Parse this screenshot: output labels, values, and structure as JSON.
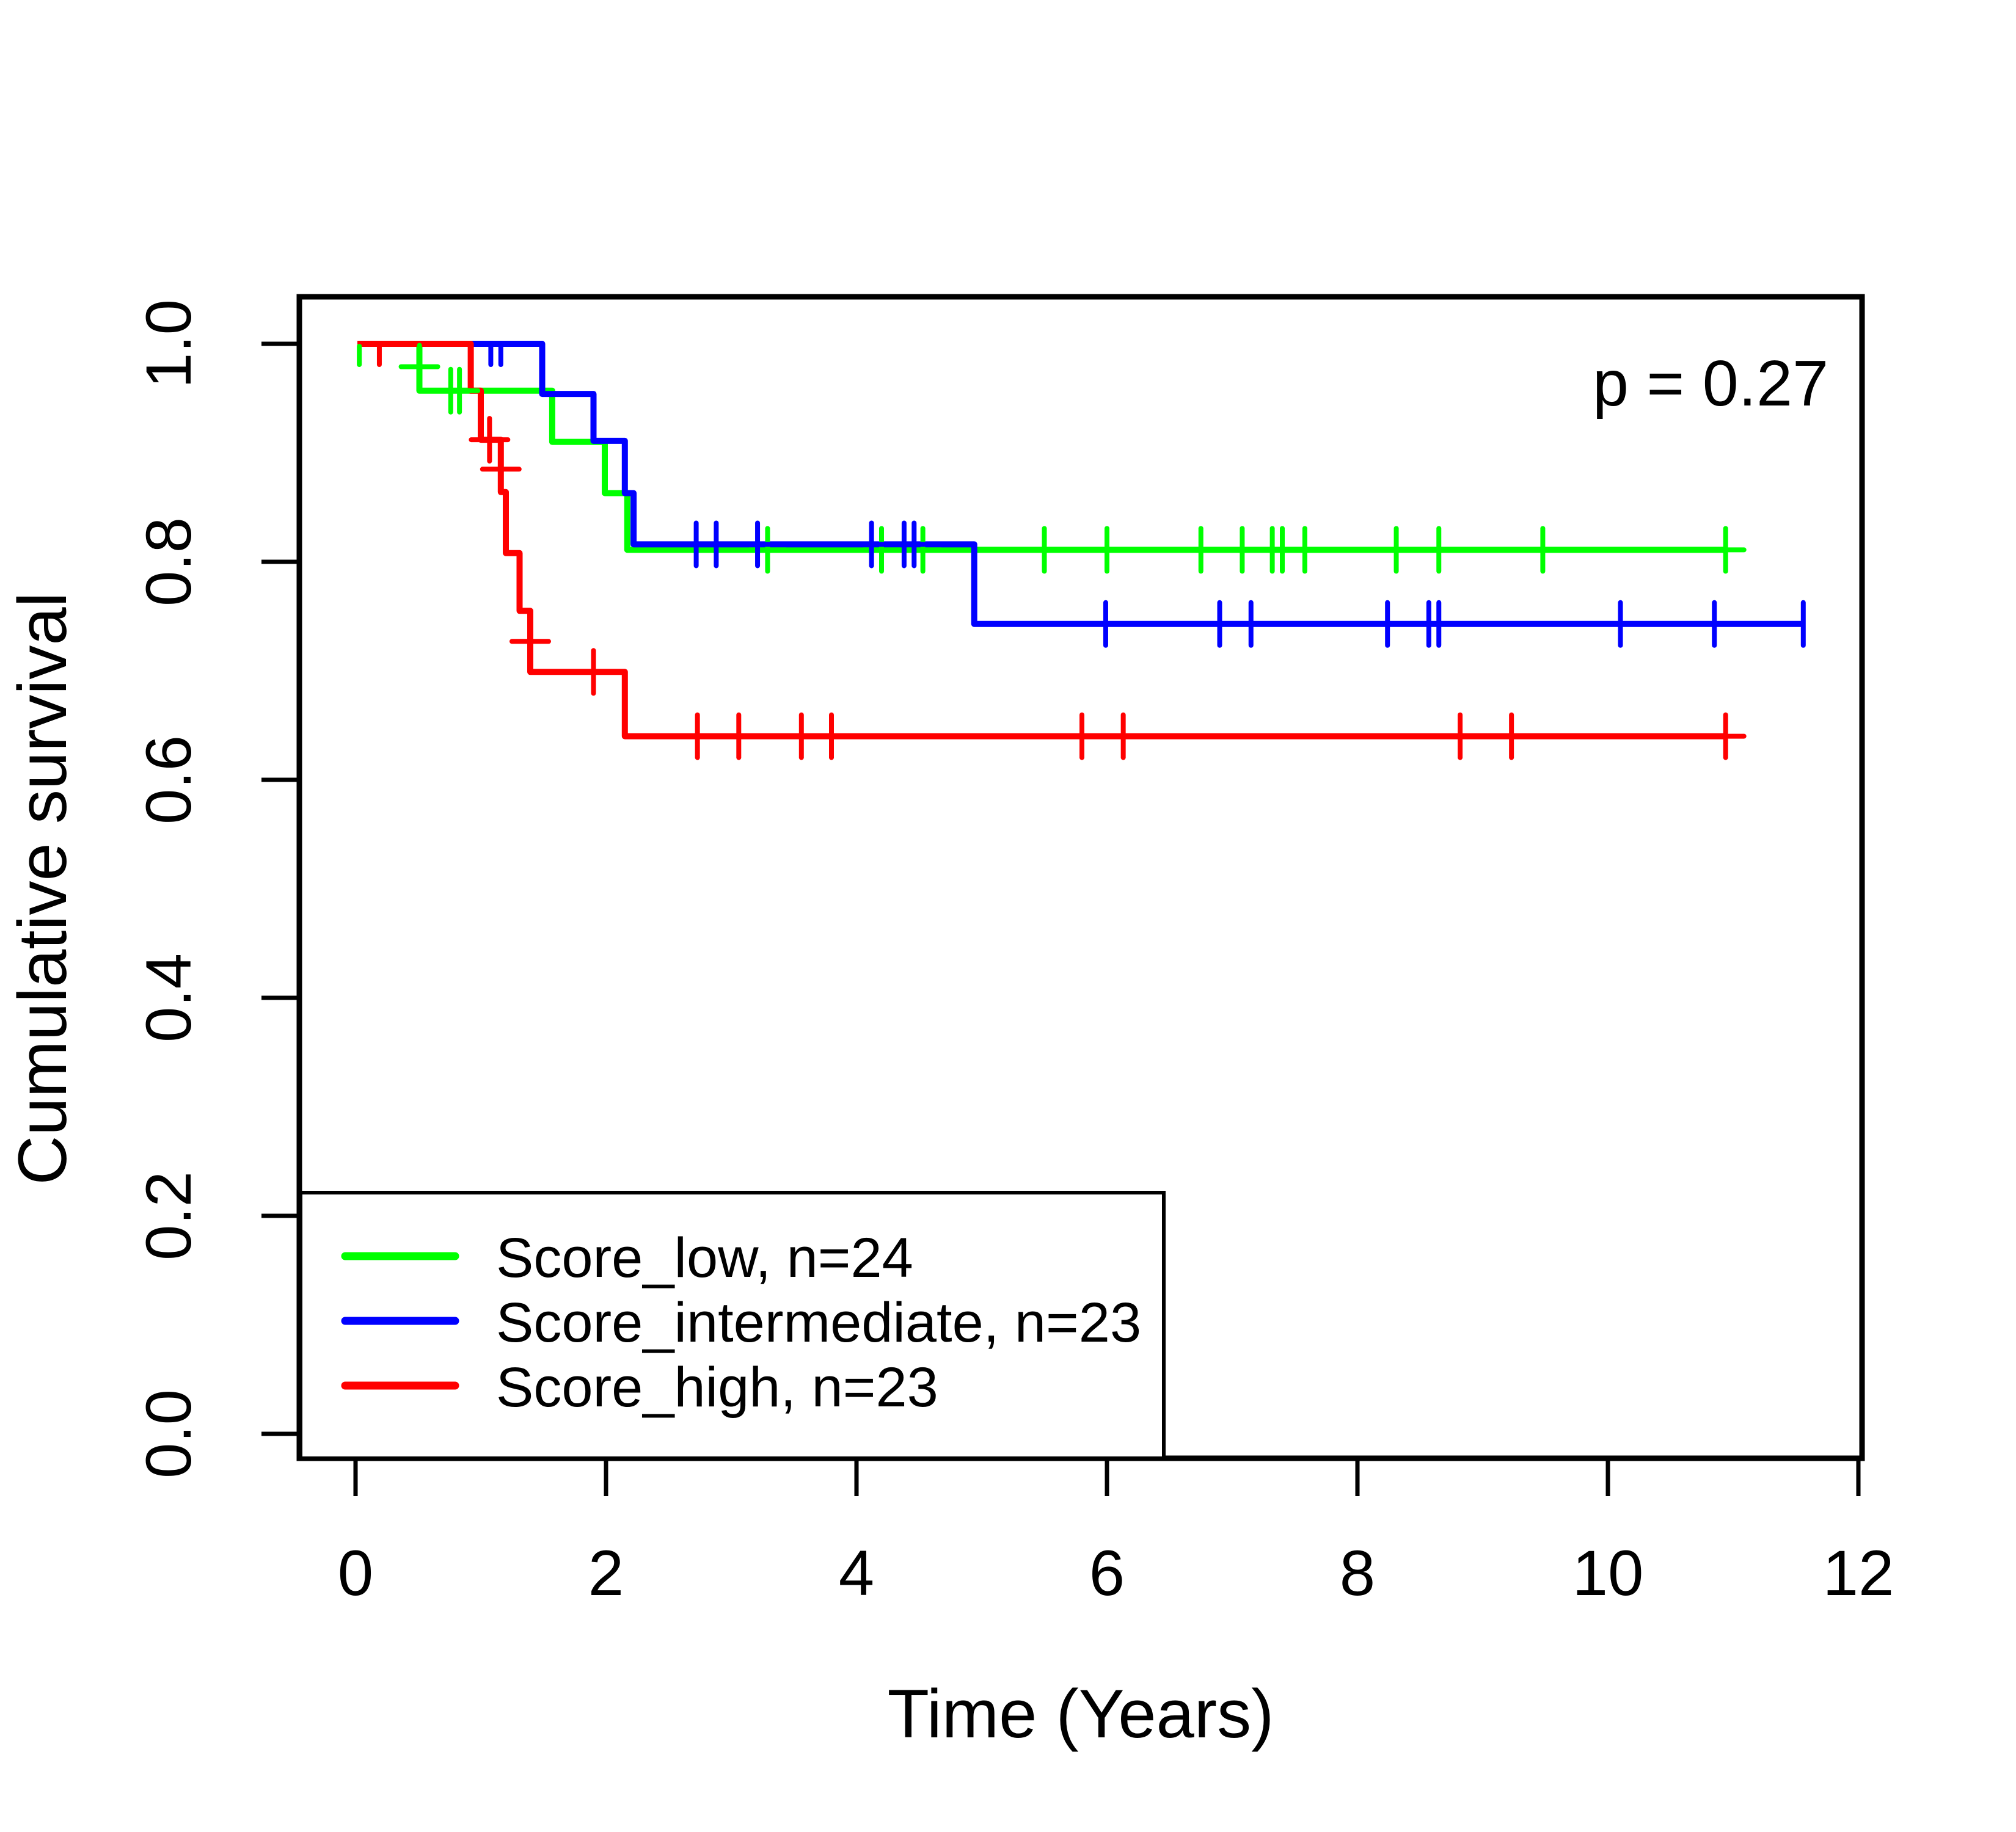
{
  "figure": {
    "kind": "kaplan-meier-survival-plot",
    "background": "#ffffff",
    "frame_color": "#000000"
  },
  "annotation": {
    "p_value": "p = 0.27"
  },
  "axes": {
    "x": {
      "label": "Time (Years)",
      "ticks": [
        "0",
        "2",
        "4",
        "6",
        "8",
        "10",
        "12"
      ],
      "tick_values": [
        0,
        2,
        4,
        6,
        8,
        10,
        12
      ],
      "range": [
        0,
        12
      ]
    },
    "y": {
      "label": "Cumulative survival",
      "ticks": [
        "0.0",
        "0.2",
        "0.4",
        "0.6",
        "0.8",
        "1.0"
      ],
      "tick_values": [
        0,
        0.2,
        0.4,
        0.6,
        0.8,
        1.0
      ],
      "range": [
        0,
        1
      ]
    }
  },
  "legend": {
    "items": [
      {
        "label": "Score_low, n=24",
        "color": "#00ff00"
      },
      {
        "label": "Score_intermediate, n=23",
        "color": "#0000ff"
      },
      {
        "label": "Score_high, n=23",
        "color": "#ff0000"
      }
    ]
  },
  "chart_data": {
    "type": "line",
    "subtype": "step-survival",
    "title": "",
    "xlabel": "Time (Years)",
    "ylabel": "Cumulative survival",
    "xlim": [
      0,
      12
    ],
    "ylim": [
      0,
      1
    ],
    "grid": false,
    "legend_position": "bottom-left",
    "p_value": 0.27,
    "series": [
      {
        "name": "Score_low",
        "n": 24,
        "color": "#00ff00",
        "steps": [
          [
            0.015,
            1.0
          ],
          [
            0.51,
            1.0
          ],
          [
            0.51,
            0.957
          ],
          [
            1.57,
            0.957
          ],
          [
            1.57,
            0.91
          ],
          [
            1.99,
            0.91
          ],
          [
            1.99,
            0.863
          ],
          [
            2.17,
            0.863
          ],
          [
            2.17,
            0.811
          ],
          [
            10.95,
            0.811
          ]
        ],
        "censors": [
          {
            "t": 0.03,
            "s": 1.0,
            "style": "tick"
          },
          {
            "t": 0.51,
            "s": 0.979,
            "style": "plus"
          },
          {
            "t": 0.76,
            "s": 0.957,
            "style": "plus"
          },
          {
            "t": 0.83,
            "s": 0.957,
            "style": "plus"
          },
          {
            "t": 3.29,
            "s": 0.811,
            "style": "plus"
          },
          {
            "t": 4.2,
            "s": 0.811,
            "style": "plus"
          },
          {
            "t": 4.53,
            "s": 0.811,
            "style": "plus"
          },
          {
            "t": 5.5,
            "s": 0.811,
            "style": "plus"
          },
          {
            "t": 6.0,
            "s": 0.811,
            "style": "plus"
          },
          {
            "t": 6.75,
            "s": 0.811,
            "style": "plus"
          },
          {
            "t": 7.08,
            "s": 0.811,
            "style": "plus"
          },
          {
            "t": 7.32,
            "s": 0.811,
            "style": "plus"
          },
          {
            "t": 7.4,
            "s": 0.811,
            "style": "plus"
          },
          {
            "t": 7.58,
            "s": 0.811,
            "style": "plus"
          },
          {
            "t": 8.31,
            "s": 0.811,
            "style": "plus"
          },
          {
            "t": 8.65,
            "s": 0.811,
            "style": "plus"
          },
          {
            "t": 9.48,
            "s": 0.811,
            "style": "plus"
          },
          {
            "t": 10.94,
            "s": 0.811,
            "style": "plus"
          }
        ]
      },
      {
        "name": "Score_intermediate",
        "n": 23,
        "color": "#0000ff",
        "steps": [
          [
            0.015,
            1.0
          ],
          [
            1.49,
            1.0
          ],
          [
            1.49,
            0.954
          ],
          [
            1.9,
            0.954
          ],
          [
            1.9,
            0.911
          ],
          [
            2.15,
            0.911
          ],
          [
            2.15,
            0.863
          ],
          [
            2.22,
            0.863
          ],
          [
            2.22,
            0.816
          ],
          [
            4.94,
            0.816
          ],
          [
            4.94,
            0.743
          ],
          [
            11.56,
            0.743
          ]
        ],
        "censors": [
          {
            "t": 1.08,
            "s": 1.0,
            "style": "tick"
          },
          {
            "t": 1.16,
            "s": 1.0,
            "style": "tick"
          },
          {
            "t": 2.72,
            "s": 0.816,
            "style": "plus"
          },
          {
            "t": 2.88,
            "s": 0.816,
            "style": "plus"
          },
          {
            "t": 3.21,
            "s": 0.816,
            "style": "plus"
          },
          {
            "t": 4.12,
            "s": 0.816,
            "style": "plus"
          },
          {
            "t": 4.38,
            "s": 0.816,
            "style": "plus"
          },
          {
            "t": 4.46,
            "s": 0.816,
            "style": "plus"
          },
          {
            "t": 5.99,
            "s": 0.743,
            "style": "plus"
          },
          {
            "t": 6.9,
            "s": 0.743,
            "style": "plus"
          },
          {
            "t": 7.15,
            "s": 0.743,
            "style": "plus"
          },
          {
            "t": 8.24,
            "s": 0.743,
            "style": "plus"
          },
          {
            "t": 8.57,
            "s": 0.743,
            "style": "plus"
          },
          {
            "t": 8.65,
            "s": 0.743,
            "style": "plus"
          },
          {
            "t": 10.1,
            "s": 0.743,
            "style": "plus"
          },
          {
            "t": 10.85,
            "s": 0.743,
            "style": "plus"
          },
          {
            "t": 11.56,
            "s": 0.743,
            "style": "vtick"
          }
        ]
      },
      {
        "name": "Score_high",
        "n": 23,
        "color": "#ff0000",
        "steps": [
          [
            0.015,
            1.0
          ],
          [
            0.92,
            1.0
          ],
          [
            0.92,
            0.957
          ],
          [
            1.0,
            0.957
          ],
          [
            1.0,
            0.912
          ],
          [
            1.16,
            0.912
          ],
          [
            1.16,
            0.864
          ],
          [
            1.2,
            0.864
          ],
          [
            1.2,
            0.808
          ],
          [
            1.31,
            0.808
          ],
          [
            1.31,
            0.755
          ],
          [
            1.395,
            0.755
          ],
          [
            1.395,
            0.699
          ],
          [
            2.15,
            0.699
          ],
          [
            2.15,
            0.64
          ],
          [
            10.95,
            0.64
          ]
        ],
        "censors": [
          {
            "t": 0.19,
            "s": 1.0,
            "style": "tick"
          },
          {
            "t": 1.07,
            "s": 0.912,
            "style": "plus"
          },
          {
            "t": 1.16,
            "s": 0.885,
            "style": "plus"
          },
          {
            "t": 1.395,
            "s": 0.727,
            "style": "plus"
          },
          {
            "t": 1.9,
            "s": 0.699,
            "style": "plus"
          },
          {
            "t": 2.73,
            "s": 0.64,
            "style": "plus"
          },
          {
            "t": 3.06,
            "s": 0.64,
            "style": "plus"
          },
          {
            "t": 3.56,
            "s": 0.64,
            "style": "plus"
          },
          {
            "t": 3.8,
            "s": 0.64,
            "style": "plus"
          },
          {
            "t": 5.8,
            "s": 0.64,
            "style": "plus"
          },
          {
            "t": 6.13,
            "s": 0.64,
            "style": "plus"
          },
          {
            "t": 8.82,
            "s": 0.64,
            "style": "plus"
          },
          {
            "t": 9.23,
            "s": 0.64,
            "style": "plus"
          },
          {
            "t": 10.94,
            "s": 0.64,
            "style": "plus"
          }
        ]
      }
    ]
  }
}
